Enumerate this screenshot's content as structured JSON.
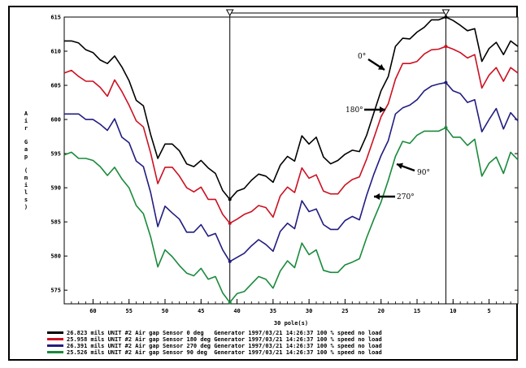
{
  "chart_data": {
    "type": "line",
    "xlabel": "30 pole(s)",
    "ylabel": "Air Gap (mils)",
    "xlim": [
      64,
      1
    ],
    "ylim": [
      573,
      615
    ],
    "x_ticks": [
      60,
      55,
      50,
      45,
      40,
      35,
      30,
      25,
      20,
      15,
      10,
      5
    ],
    "y_ticks": [
      575,
      580,
      585,
      590,
      595,
      600,
      605,
      610,
      615
    ],
    "x": [
      64,
      63,
      62,
      61,
      60,
      59,
      58,
      57,
      56,
      55,
      54,
      53,
      52,
      51,
      50,
      49,
      48,
      47,
      46,
      45,
      44,
      43,
      42,
      41,
      40,
      39,
      38,
      37,
      36,
      35,
      34,
      33,
      32,
      31,
      30,
      29,
      28,
      27,
      26,
      25,
      24,
      23,
      22,
      21,
      20,
      19,
      18,
      17,
      16,
      15,
      14,
      13,
      12,
      11,
      10,
      9,
      8,
      7,
      6,
      5,
      4,
      3,
      2,
      1
    ],
    "cursors": [
      41,
      11
    ],
    "series": [
      {
        "name": "0°",
        "color": "#000000",
        "values": [
          611.5,
          611.5,
          611.2,
          610.2,
          609.8,
          608.7,
          608.2,
          609.3,
          607.7,
          605.7,
          602.8,
          602.0,
          597.8,
          594.3,
          596.4,
          596.4,
          595.4,
          593.5,
          593.1,
          594.0,
          592.9,
          592.1,
          589.6,
          588.3,
          589.5,
          589.9,
          591.1,
          592.0,
          591.7,
          590.8,
          593.3,
          594.6,
          593.9,
          597.6,
          596.4,
          597.4,
          594.5,
          593.5,
          594.0,
          594.9,
          595.5,
          595.3,
          597.7,
          601.0,
          604.2,
          606.3,
          610.7,
          611.9,
          611.8,
          612.8,
          613.5,
          614.6,
          614.6,
          615.0,
          614.5,
          613.8,
          613.0,
          613.3,
          608.5,
          610.4,
          611.3,
          609.5,
          611.5,
          610.7
        ]
      },
      {
        "name": "180°",
        "color": "#cc1122",
        "values": [
          606.8,
          607.2,
          606.3,
          605.6,
          605.6,
          604.7,
          603.4,
          605.8,
          604.1,
          602.1,
          599.8,
          598.9,
          595.1,
          590.6,
          593.0,
          593.0,
          591.7,
          590.0,
          589.4,
          590.1,
          588.3,
          588.3,
          586.1,
          584.8,
          585.4,
          586.1,
          586.5,
          587.4,
          587.1,
          585.7,
          588.8,
          590.1,
          589.3,
          592.9,
          591.4,
          591.9,
          589.5,
          589.1,
          589.1,
          590.4,
          591.2,
          591.6,
          594.2,
          597.3,
          600.4,
          602.3,
          605.9,
          608.2,
          608.2,
          608.5,
          609.6,
          610.2,
          610.3,
          610.7,
          610.3,
          609.8,
          609.0,
          609.5,
          604.6,
          606.5,
          607.6,
          605.6,
          607.6,
          606.8
        ]
      },
      {
        "name": "270°",
        "color": "#221d80",
        "values": [
          600.8,
          600.8,
          600.8,
          600.0,
          600.0,
          599.3,
          598.4,
          600.1,
          597.4,
          596.6,
          593.9,
          593.1,
          589.3,
          584.3,
          587.3,
          586.3,
          585.4,
          583.5,
          583.5,
          584.6,
          582.9,
          583.3,
          580.9,
          579.2,
          579.8,
          580.4,
          581.5,
          582.4,
          581.7,
          580.7,
          583.6,
          584.8,
          584.0,
          588.1,
          586.5,
          586.9,
          584.6,
          583.9,
          583.9,
          585.2,
          585.8,
          585.3,
          588.9,
          592.0,
          594.7,
          596.9,
          600.8,
          601.7,
          602.1,
          602.9,
          604.2,
          604.9,
          605.2,
          605.4,
          604.2,
          603.8,
          602.5,
          602.9,
          598.2,
          600.0,
          601.6,
          598.6,
          601.0,
          599.8
        ]
      },
      {
        "name": "90°",
        "color": "#1a8a3c",
        "values": [
          594.8,
          595.2,
          594.3,
          594.3,
          594.0,
          593.1,
          591.8,
          593.0,
          591.3,
          590.0,
          587.4,
          586.2,
          582.8,
          578.4,
          580.9,
          579.9,
          578.6,
          577.5,
          577.1,
          578.2,
          576.6,
          577.0,
          574.6,
          573.2,
          574.5,
          574.8,
          575.9,
          577.0,
          576.6,
          575.3,
          577.8,
          579.3,
          578.3,
          581.9,
          580.2,
          580.9,
          577.9,
          577.6,
          577.6,
          578.7,
          579.1,
          579.6,
          582.7,
          585.4,
          587.9,
          591.1,
          594.6,
          596.8,
          596.5,
          597.7,
          598.3,
          598.3,
          598.3,
          598.8,
          597.4,
          597.4,
          596.2,
          597.1,
          591.7,
          593.6,
          594.5,
          592.1,
          595.2,
          594.1
        ]
      }
    ],
    "annotations": [
      {
        "text": "0°",
        "series": 0
      },
      {
        "text": "180°",
        "series": 1
      },
      {
        "text": "90°",
        "series": 3
      },
      {
        "text": "270°",
        "series": 2
      }
    ],
    "legend": {
      "placement": "bottom",
      "entries": [
        {
          "text": "26.823 mils UNIT #2 Air gap Sensor 0 deg   Generator 1997/03/21 14:26:37 100 % speed no load",
          "color": "#000000"
        },
        {
          "text": "25.958 mils UNIT #2 Air gap Sensor 180 deg Generator 1997/03/21 14:26:37 100 % speed no load",
          "color": "#cc1122"
        },
        {
          "text": "26.391 mils UNIT #2 Air gap Sensor 270 deg Generator 1997/03/21 14:26:37 100 % speed no load",
          "color": "#221d80"
        },
        {
          "text": "25.526 mils UNIT #2 Air gap Sensor 90 deg  Generator 1997/03/21 14:26:37 100 % speed no load",
          "color": "#1a8a3c"
        }
      ]
    }
  }
}
